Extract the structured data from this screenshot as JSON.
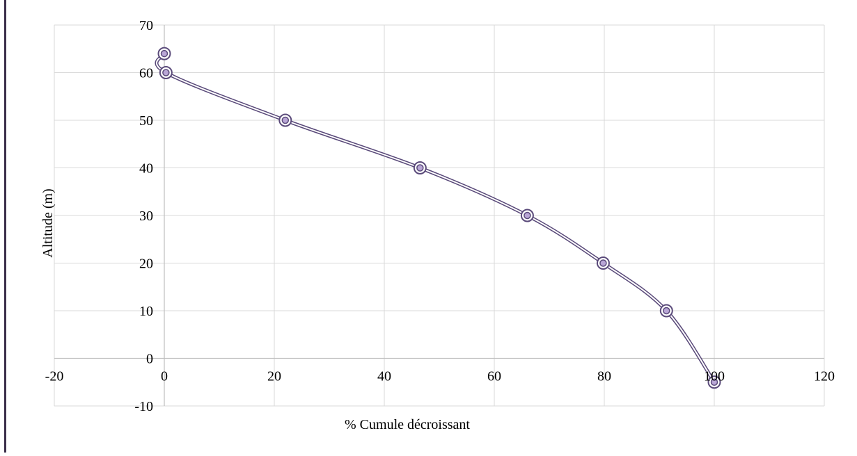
{
  "chart_data": {
    "type": "scatter",
    "title": "",
    "xlabel": "% Cumule  décroissant",
    "ylabel": "Altitude (m)",
    "xlim": [
      -20,
      120
    ],
    "ylim": [
      -10,
      70
    ],
    "x_ticks": [
      -20,
      0,
      20,
      40,
      60,
      80,
      100,
      120
    ],
    "y_ticks": [
      -10,
      0,
      10,
      20,
      30,
      40,
      50,
      60,
      70
    ],
    "grid": true,
    "smooth_line": true,
    "series": [
      {
        "x": [
          0,
          0.3,
          22,
          46.5,
          66,
          79.8,
          91.3,
          100
        ],
        "y": [
          64,
          60,
          50,
          40,
          30,
          20,
          10,
          -5
        ]
      }
    ],
    "colors": {
      "line": "#5a4a7a",
      "marker": "#b9a6d6",
      "grid": "#d9d9d9",
      "border": "#3b2f4a"
    }
  }
}
